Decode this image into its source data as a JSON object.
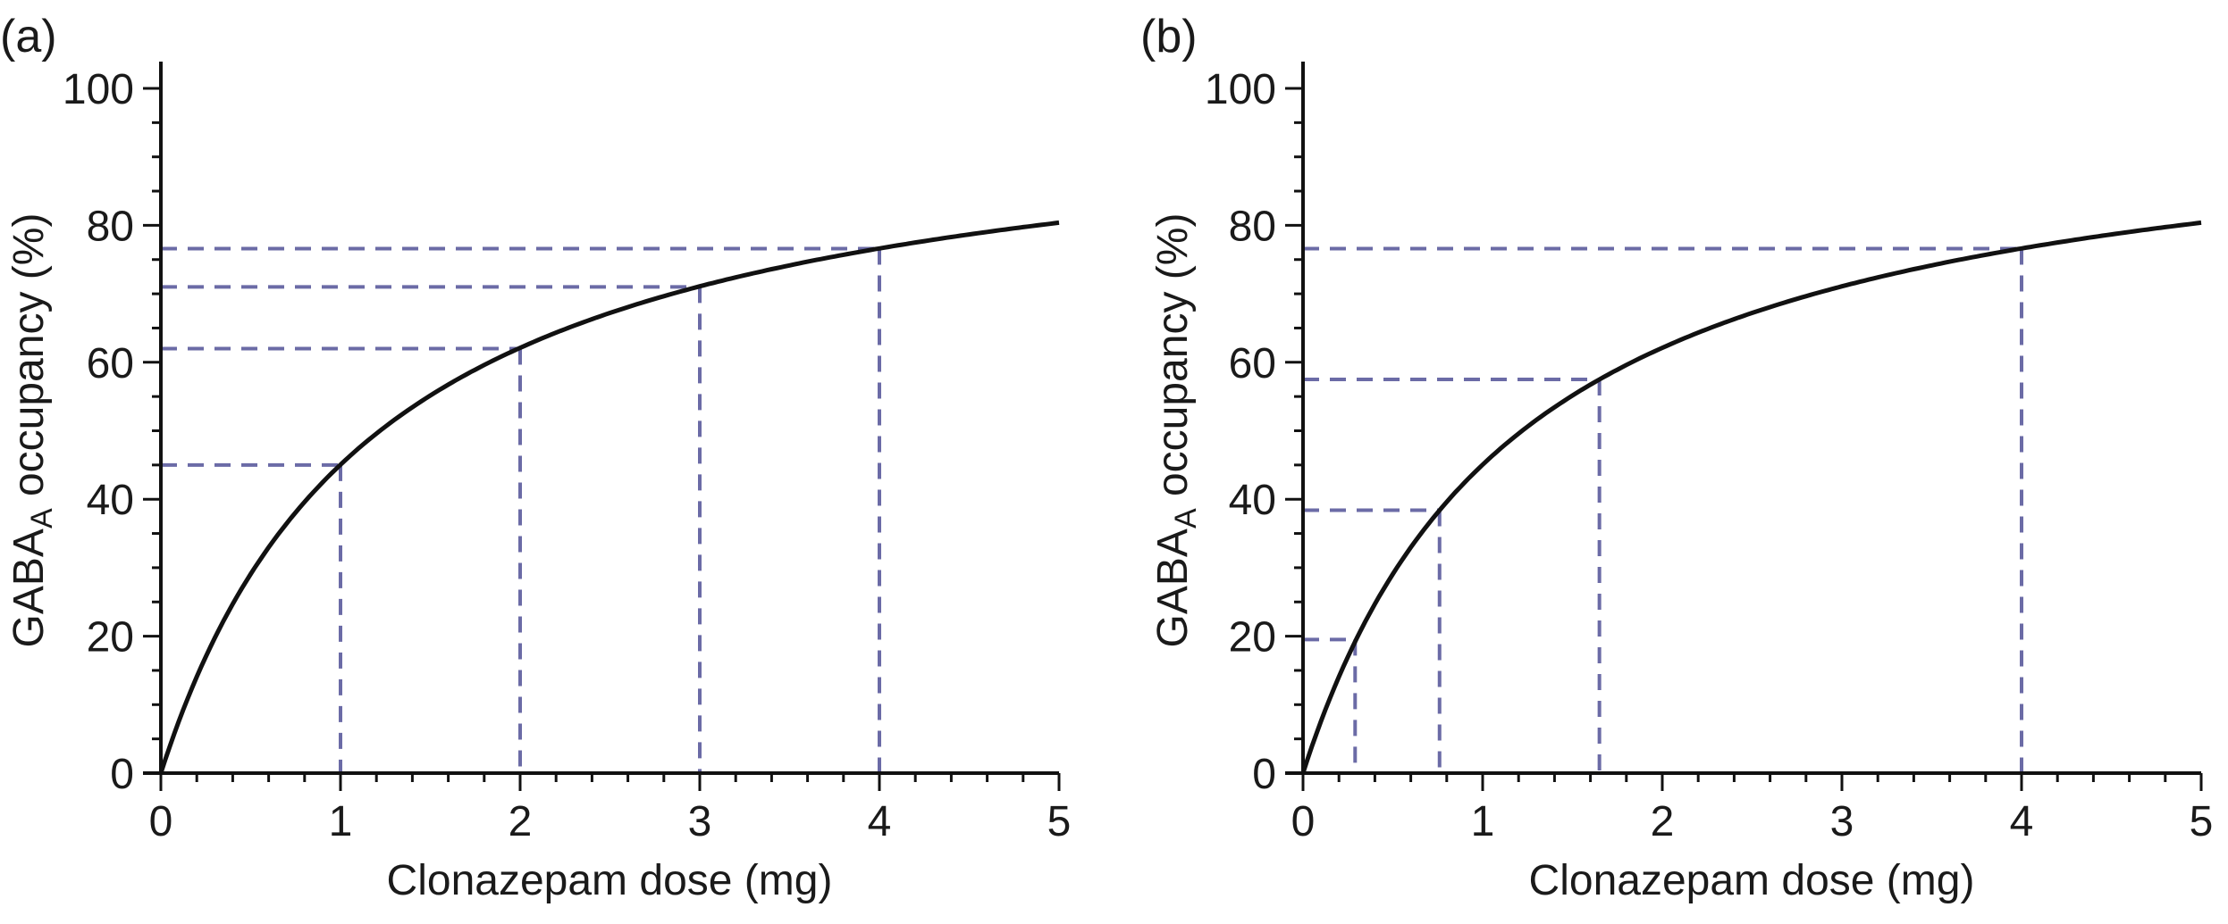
{
  "chart_data": [
    {
      "type": "line",
      "panel_label": "(a)",
      "xlabel": "Clonazepam dose (mg)",
      "ylabel_main": "GABA",
      "ylabel_sub": "A",
      "ylabel_rest": " occupancy (%)",
      "xlim": [
        0,
        5
      ],
      "ylim": [
        0,
        100
      ],
      "x_ticks": [
        0,
        1,
        2,
        3,
        4,
        5
      ],
      "x_tick_labels": [
        "0",
        "1",
        "2",
        "3",
        "4",
        "5"
      ],
      "y_ticks": [
        0,
        20,
        40,
        60,
        80,
        100
      ],
      "y_tick_labels": [
        "0",
        "20",
        "40",
        "60",
        "80",
        "100"
      ],
      "x_minor_step": 0.2,
      "y_minor_step": 5,
      "grid": false,
      "curve": {
        "name": "occupancy",
        "model": "Emax",
        "emax": 100,
        "ed50": 1.22,
        "x_range": [
          0,
          5
        ]
      },
      "reference_points": [
        {
          "x": 1,
          "y": 45
        },
        {
          "x": 2,
          "y": 62
        },
        {
          "x": 3,
          "y": 71
        },
        {
          "x": 4,
          "y": 76.6
        }
      ],
      "colors": {
        "curve": "#111111",
        "reference": "#6b6ba6",
        "axis": "#111111"
      }
    },
    {
      "type": "line",
      "panel_label": "(b)",
      "xlabel": "Clonazepam dose (mg)",
      "ylabel_main": "GABA",
      "ylabel_sub": "A",
      "ylabel_rest": " occupancy (%)",
      "xlim": [
        0,
        5
      ],
      "ylim": [
        0,
        100
      ],
      "x_ticks": [
        0,
        1,
        2,
        3,
        4,
        5
      ],
      "x_tick_labels": [
        "0",
        "1",
        "2",
        "3",
        "4",
        "5"
      ],
      "y_ticks": [
        0,
        20,
        40,
        60,
        80,
        100
      ],
      "y_tick_labels": [
        "0",
        "20",
        "40",
        "60",
        "80",
        "100"
      ],
      "x_minor_step": 0.2,
      "y_minor_step": 5,
      "grid": false,
      "curve": {
        "name": "occupancy",
        "model": "Emax",
        "emax": 100,
        "ed50": 1.22,
        "x_range": [
          0,
          5
        ]
      },
      "reference_points": [
        {
          "x": 0.29,
          "y": 19.5
        },
        {
          "x": 0.76,
          "y": 38.4
        },
        {
          "x": 1.65,
          "y": 57.5
        },
        {
          "x": 4,
          "y": 76.6
        }
      ],
      "colors": {
        "curve": "#111111",
        "reference": "#6b6ba6",
        "axis": "#111111"
      }
    }
  ]
}
